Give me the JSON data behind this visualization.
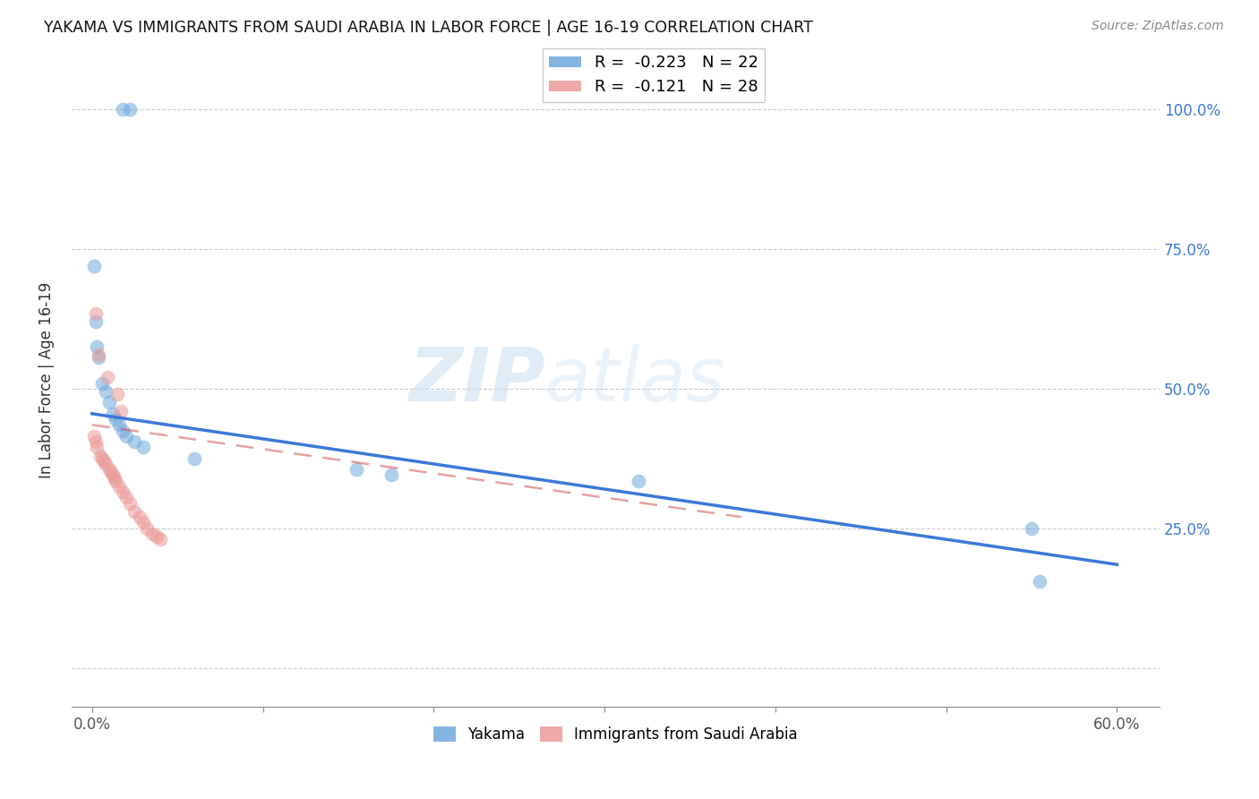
{
  "title": "YAKAMA VS IMMIGRANTS FROM SAUDI ARABIA IN LABOR FORCE | AGE 16-19 CORRELATION CHART",
  "source": "Source: ZipAtlas.com",
  "ylabel": "In Labor Force | Age 16-19",
  "x_tick_positions": [
    0.0,
    0.1,
    0.2,
    0.3,
    0.4,
    0.5,
    0.6
  ],
  "x_tick_labels": [
    "0.0%",
    "",
    "",
    "",
    "",
    "",
    "60.0%"
  ],
  "y_ticks": [
    0.0,
    0.25,
    0.5,
    0.75,
    1.0
  ],
  "y_tick_labels": [
    "",
    "25.0%",
    "50.0%",
    "75.0%",
    "100.0%"
  ],
  "xlim": [
    -0.012,
    0.625
  ],
  "ylim": [
    -0.07,
    1.1
  ],
  "watermark_zip": "ZIP",
  "watermark_atlas": "atlas",
  "legend_blue_r": "-0.223",
  "legend_blue_n": "22",
  "legend_pink_r": "-0.121",
  "legend_pink_n": "28",
  "blue_color": "#6fa8dc",
  "pink_color": "#ea9999",
  "blue_line_color": "#3c78d8",
  "pink_line_color": "#cc4444",
  "yakama_x": [
    0.018,
    0.022,
    0.001,
    0.002,
    0.003,
    0.004,
    0.006,
    0.008,
    0.01,
    0.012,
    0.014,
    0.016,
    0.018,
    0.02,
    0.025,
    0.03,
    0.06,
    0.155,
    0.175,
    0.32,
    0.55,
    0.555
  ],
  "yakama_y": [
    1.0,
    1.0,
    0.72,
    0.62,
    0.575,
    0.555,
    0.51,
    0.495,
    0.475,
    0.455,
    0.445,
    0.435,
    0.425,
    0.415,
    0.405,
    0.395,
    0.375,
    0.355,
    0.345,
    0.335,
    0.25,
    0.155
  ],
  "saudi_x": [
    0.001,
    0.002,
    0.003,
    0.005,
    0.006,
    0.007,
    0.008,
    0.01,
    0.011,
    0.012,
    0.013,
    0.014,
    0.016,
    0.018,
    0.02,
    0.022,
    0.025,
    0.028,
    0.03,
    0.032,
    0.035,
    0.038,
    0.04,
    0.002,
    0.004,
    0.009,
    0.015,
    0.017
  ],
  "saudi_y": [
    0.415,
    0.405,
    0.395,
    0.38,
    0.375,
    0.37,
    0.365,
    0.355,
    0.35,
    0.345,
    0.34,
    0.335,
    0.325,
    0.315,
    0.305,
    0.295,
    0.28,
    0.27,
    0.26,
    0.25,
    0.24,
    0.235,
    0.23,
    0.635,
    0.56,
    0.52,
    0.49,
    0.46
  ],
  "blue_trendline_x": [
    0.0,
    0.6
  ],
  "blue_trendline_y": [
    0.455,
    0.185
  ],
  "pink_trendline_x": [
    0.0,
    0.38
  ],
  "pink_trendline_y": [
    0.435,
    0.27
  ],
  "marker_size": 130,
  "alpha_scatter": 0.55
}
